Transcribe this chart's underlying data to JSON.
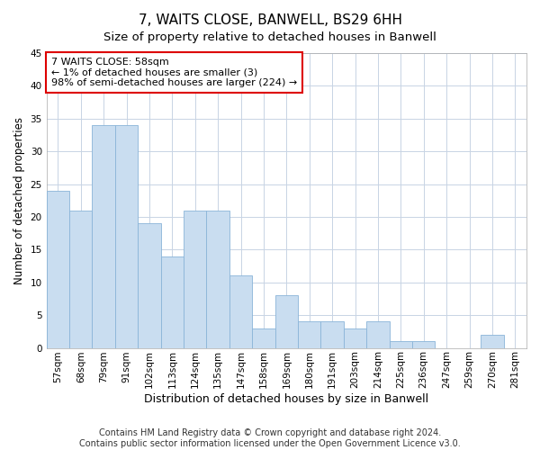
{
  "title": "7, WAITS CLOSE, BANWELL, BS29 6HH",
  "subtitle": "Size of property relative to detached houses in Banwell",
  "xlabel": "Distribution of detached houses by size in Banwell",
  "ylabel": "Number of detached properties",
  "categories": [
    "57sqm",
    "68sqm",
    "79sqm",
    "91sqm",
    "102sqm",
    "113sqm",
    "124sqm",
    "135sqm",
    "147sqm",
    "158sqm",
    "169sqm",
    "180sqm",
    "191sqm",
    "203sqm",
    "214sqm",
    "225sqm",
    "236sqm",
    "247sqm",
    "259sqm",
    "270sqm",
    "281sqm"
  ],
  "values": [
    24,
    21,
    34,
    34,
    19,
    14,
    21,
    21,
    11,
    3,
    8,
    4,
    4,
    3,
    4,
    1,
    1,
    0,
    0,
    2,
    0
  ],
  "bar_color": "#c9ddf0",
  "bar_edge_color": "#8ab4d8",
  "annotation_line1": "7 WAITS CLOSE: 58sqm",
  "annotation_line2": "← 1% of detached houses are smaller (3)",
  "annotation_line3": "98% of semi-detached houses are larger (224) →",
  "annotation_box_color": "#dd0000",
  "annotation_box_fill": "#ffffff",
  "ylim": [
    0,
    45
  ],
  "yticks": [
    0,
    5,
    10,
    15,
    20,
    25,
    30,
    35,
    40,
    45
  ],
  "grid_color": "#c8d4e4",
  "background_color": "#ffffff",
  "footer_line1": "Contains HM Land Registry data © Crown copyright and database right 2024.",
  "footer_line2": "Contains public sector information licensed under the Open Government Licence v3.0.",
  "title_fontsize": 11,
  "subtitle_fontsize": 9.5,
  "xlabel_fontsize": 9,
  "ylabel_fontsize": 8.5,
  "tick_fontsize": 7.5,
  "annot_fontsize": 8,
  "footer_fontsize": 7
}
